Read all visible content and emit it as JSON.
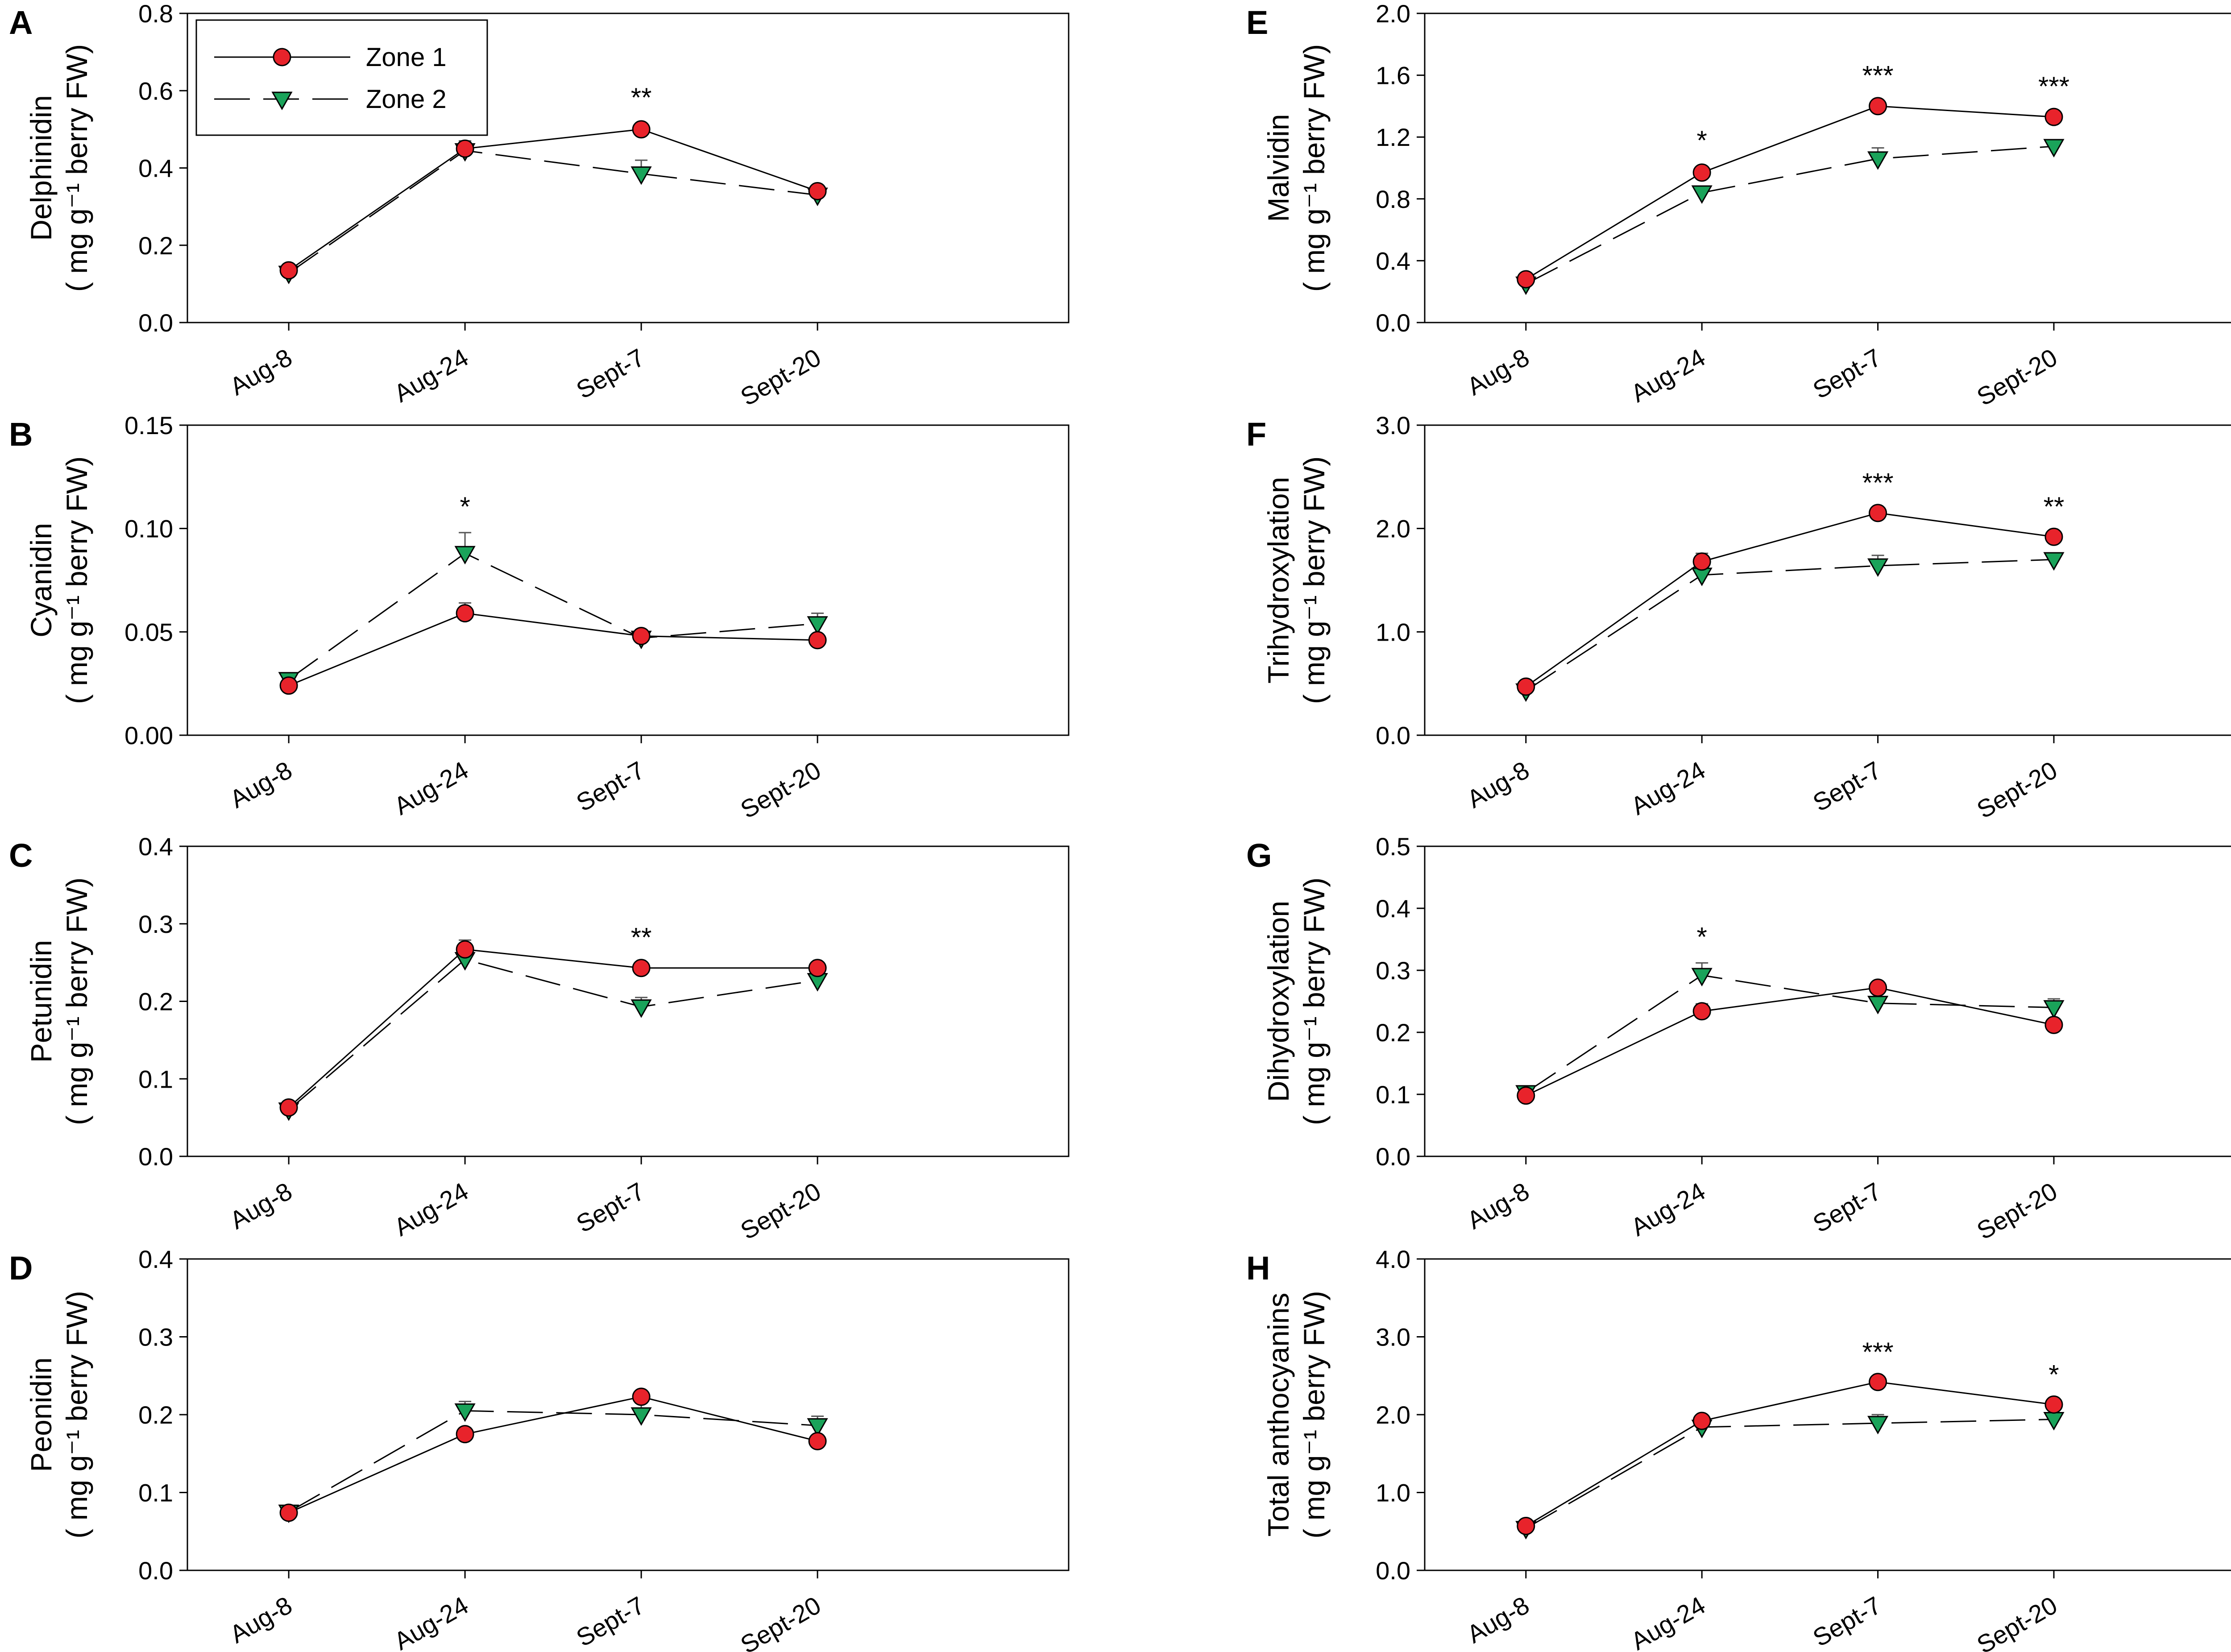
{
  "chart_data": [
    {
      "panel": "A",
      "type": "line",
      "ylabel": "Delphinidin",
      "ylabel_units": "( mg g⁻¹ berry FW)",
      "categories": [
        "Aug-8",
        "Aug-24",
        "Sept-7",
        "Sept-20"
      ],
      "ylim": [
        0,
        0.8
      ],
      "yticks": [
        "0.0",
        "0.2",
        "0.4",
        "0.6",
        "0.8"
      ],
      "series": [
        {
          "name": "Zone 1",
          "values": [
            0.135,
            0.45,
            0.5,
            0.34
          ],
          "errors": [
            0.01,
            0.02,
            0.015,
            0.01
          ]
        },
        {
          "name": "Zone 2",
          "values": [
            0.128,
            0.445,
            0.385,
            0.33
          ],
          "errors": [
            0.01,
            0.025,
            0.035,
            0.015
          ]
        }
      ],
      "significance": [
        "",
        "",
        "**",
        ""
      ],
      "legend": "top-left"
    },
    {
      "panel": "B",
      "type": "line",
      "ylabel": "Cyanidin",
      "ylabel_units": "( mg g⁻¹ berry FW)",
      "categories": [
        "Aug-8",
        "Aug-24",
        "Sept-7",
        "Sept-20"
      ],
      "ylim": [
        0,
        0.15
      ],
      "yticks": [
        "0.00",
        "0.05",
        "0.10",
        "0.15"
      ],
      "series": [
        {
          "name": "Zone 1",
          "values": [
            0.024,
            0.059,
            0.048,
            0.046
          ],
          "errors": [
            0.002,
            0.005,
            0.003,
            0.002
          ]
        },
        {
          "name": "Zone 2",
          "values": [
            0.027,
            0.088,
            0.047,
            0.054
          ],
          "errors": [
            0.002,
            0.01,
            0.004,
            0.005
          ]
        }
      ],
      "significance": [
        "",
        "*",
        "",
        ""
      ]
    },
    {
      "panel": "C",
      "type": "line",
      "ylabel": "Petunidin",
      "ylabel_units": "( mg g⁻¹ berry FW)",
      "categories": [
        "Aug-8",
        "Aug-24",
        "Sept-7",
        "Sept-20"
      ],
      "ylim": [
        0,
        0.4
      ],
      "yticks": [
        "0.0",
        "0.1",
        "0.2",
        "0.3",
        "0.4"
      ],
      "series": [
        {
          "name": "Zone 1",
          "values": [
            0.063,
            0.267,
            0.243,
            0.243
          ],
          "errors": [
            0.005,
            0.012,
            0.006,
            0.006
          ]
        },
        {
          "name": "Zone 2",
          "values": [
            0.06,
            0.254,
            0.193,
            0.227
          ],
          "errors": [
            0.005,
            0.015,
            0.012,
            0.01
          ]
        }
      ],
      "significance": [
        "",
        "",
        "**",
        ""
      ]
    },
    {
      "panel": "D",
      "type": "line",
      "ylabel": "Peonidin",
      "ylabel_units": "( mg g⁻¹ berry FW)",
      "categories": [
        "Aug-8",
        "Aug-24",
        "Sept-7",
        "Sept-20"
      ],
      "ylim": [
        0,
        0.4
      ],
      "yticks": [
        "0.0",
        "0.1",
        "0.2",
        "0.3",
        "0.4"
      ],
      "series": [
        {
          "name": "Zone 1",
          "values": [
            0.074,
            0.175,
            0.223,
            0.166
          ],
          "errors": [
            0.004,
            0.008,
            0.006,
            0.006
          ]
        },
        {
          "name": "Zone 2",
          "values": [
            0.075,
            0.205,
            0.2,
            0.186
          ],
          "errors": [
            0.004,
            0.012,
            0.015,
            0.012
          ]
        }
      ],
      "significance": [
        "",
        "",
        "",
        ""
      ]
    },
    {
      "panel": "E",
      "type": "line",
      "ylabel": "Malvidin",
      "ylabel_units": "( mg g⁻¹ berry FW)",
      "categories": [
        "Aug-8",
        "Aug-24",
        "Sept-7",
        "Sept-20"
      ],
      "ylim": [
        0,
        2.0
      ],
      "yticks": [
        "0.0",
        "0.4",
        "0.8",
        "1.2",
        "1.6",
        "2.0"
      ],
      "series": [
        {
          "name": "Zone 1",
          "values": [
            0.28,
            0.97,
            1.4,
            1.33
          ],
          "errors": [
            0.02,
            0.04,
            0.03,
            0.03
          ]
        },
        {
          "name": "Zone 2",
          "values": [
            0.25,
            0.84,
            1.06,
            1.14
          ],
          "errors": [
            0.02,
            0.03,
            0.07,
            0.03
          ]
        }
      ],
      "significance": [
        "",
        "*",
        "***",
        "***"
      ]
    },
    {
      "panel": "F",
      "type": "line",
      "ylabel": "Trihydroxylation",
      "ylabel_units": "( mg g⁻¹ berry FW)",
      "categories": [
        "Aug-8",
        "Aug-24",
        "Sept-7",
        "Sept-20"
      ],
      "ylim": [
        0,
        3.0
      ],
      "yticks": [
        "0.0",
        "1.0",
        "2.0",
        "3.0"
      ],
      "series": [
        {
          "name": "Zone 1",
          "values": [
            0.47,
            1.68,
            2.15,
            1.92
          ],
          "errors": [
            0.03,
            0.08,
            0.04,
            0.04
          ]
        },
        {
          "name": "Zone 2",
          "values": [
            0.43,
            1.55,
            1.64,
            1.7
          ],
          "errors": [
            0.03,
            0.06,
            0.1,
            0.04
          ]
        }
      ],
      "significance": [
        "",
        "",
        "***",
        "**"
      ]
    },
    {
      "panel": "G",
      "type": "line",
      "ylabel": "Dihydroxylation",
      "ylabel_units": "( mg g⁻¹ berry FW)",
      "categories": [
        "Aug-8",
        "Aug-24",
        "Sept-7",
        "Sept-20"
      ],
      "ylim": [
        0,
        0.5
      ],
      "yticks": [
        "0.0",
        "0.1",
        "0.2",
        "0.3",
        "0.4",
        "0.5"
      ],
      "series": [
        {
          "name": "Zone 1",
          "values": [
            0.098,
            0.234,
            0.272,
            0.212
          ],
          "errors": [
            0.005,
            0.012,
            0.008,
            0.006
          ]
        },
        {
          "name": "Zone 2",
          "values": [
            0.103,
            0.292,
            0.247,
            0.24
          ],
          "errors": [
            0.006,
            0.02,
            0.018,
            0.014
          ]
        }
      ],
      "significance": [
        "",
        "*",
        "",
        ""
      ]
    },
    {
      "panel": "H",
      "type": "line",
      "ylabel": "Total anthocyanins",
      "ylabel_units": "( mg g⁻¹ berry FW)",
      "categories": [
        "Aug-8",
        "Aug-24",
        "Sept-7",
        "Sept-20"
      ],
      "ylim": [
        0,
        4.0
      ],
      "yticks": [
        "0.0",
        "1.0",
        "2.0",
        "3.0",
        "4.0"
      ],
      "series": [
        {
          "name": "Zone 1",
          "values": [
            0.57,
            1.92,
            2.42,
            2.13
          ],
          "errors": [
            0.04,
            0.06,
            0.05,
            0.05
          ]
        },
        {
          "name": "Zone 2",
          "values": [
            0.54,
            1.84,
            1.89,
            1.94
          ],
          "errors": [
            0.04,
            0.06,
            0.11,
            0.05
          ]
        }
      ],
      "significance": [
        "",
        "",
        "***",
        "*"
      ]
    }
  ],
  "legend": {
    "entries": [
      {
        "name": "Zone 1",
        "style": "solid",
        "marker": "circle",
        "color": "#e8232b"
      },
      {
        "name": "Zone 2",
        "style": "dashed",
        "marker": "triangle-down",
        "color": "#1aa35a"
      }
    ]
  }
}
